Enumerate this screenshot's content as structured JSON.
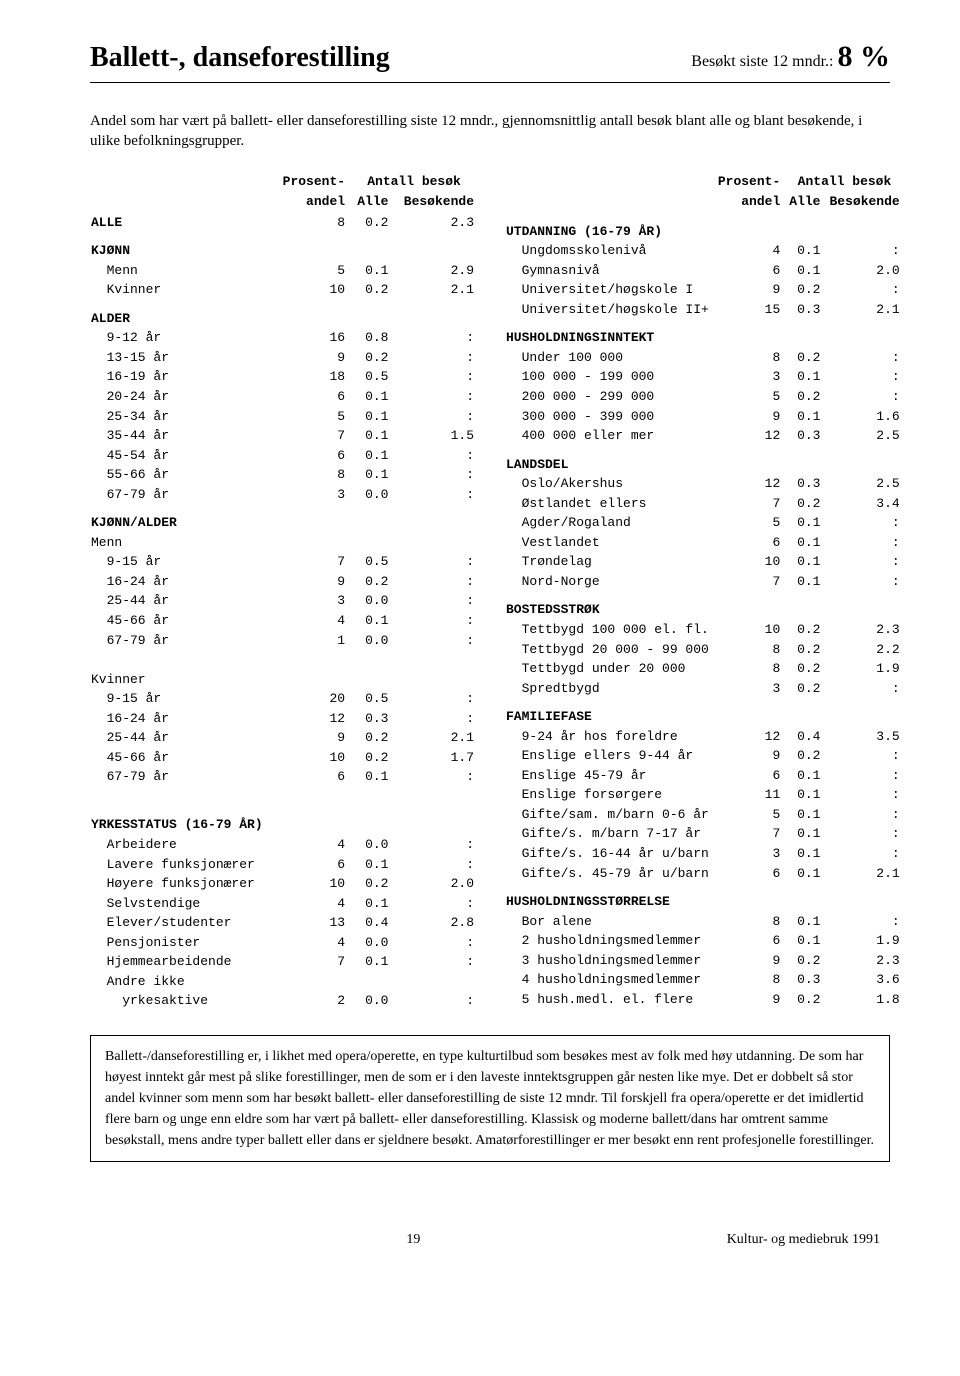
{
  "header": {
    "title": "Ballett-, danseforestilling",
    "stat_label": "Besøkt siste 12 mndr.:",
    "stat_value": "8 %"
  },
  "intro": "Andel som har vært på ballett- eller danseforestilling siste 12 mndr., gjennomsnittlig antall besøk blant alle og blant besøkende, i ulike befolkningsgrupper.",
  "table_header": {
    "h1": "Prosent-",
    "h1b": "andel",
    "h2": "Antall besøk",
    "h2a": "Alle",
    "h2b": "Besøkende"
  },
  "left": [
    {
      "type": "row",
      "bold": true,
      "label": "ALLE",
      "c1": "8",
      "c2": "0.2",
      "c3": "2.3"
    },
    {
      "type": "head",
      "label": "KJØNN"
    },
    {
      "type": "row",
      "indent": true,
      "label": "Menn",
      "c1": "5",
      "c2": "0.1",
      "c3": "2.9"
    },
    {
      "type": "row",
      "indent": true,
      "label": "Kvinner",
      "c1": "10",
      "c2": "0.2",
      "c3": "2.1"
    },
    {
      "type": "head",
      "label": "ALDER"
    },
    {
      "type": "row",
      "indent": true,
      "label": "9-12 år",
      "c1": "16",
      "c2": "0.8",
      "c3": ":"
    },
    {
      "type": "row",
      "indent": true,
      "label": "13-15 år",
      "c1": "9",
      "c2": "0.2",
      "c3": ":"
    },
    {
      "type": "row",
      "indent": true,
      "label": "16-19 år",
      "c1": "18",
      "c2": "0.5",
      "c3": ":"
    },
    {
      "type": "row",
      "indent": true,
      "label": "20-24 år",
      "c1": "6",
      "c2": "0.1",
      "c3": ":"
    },
    {
      "type": "row",
      "indent": true,
      "label": "25-34 år",
      "c1": "5",
      "c2": "0.1",
      "c3": ":"
    },
    {
      "type": "row",
      "indent": true,
      "label": "35-44 år",
      "c1": "7",
      "c2": "0.1",
      "c3": "1.5"
    },
    {
      "type": "row",
      "indent": true,
      "label": "45-54 år",
      "c1": "6",
      "c2": "0.1",
      "c3": ":"
    },
    {
      "type": "row",
      "indent": true,
      "label": "55-66 år",
      "c1": "8",
      "c2": "0.1",
      "c3": ":"
    },
    {
      "type": "row",
      "indent": true,
      "label": "67-79 år",
      "c1": "3",
      "c2": "0.0",
      "c3": ":"
    },
    {
      "type": "head",
      "label": "KJØNN/ALDER"
    },
    {
      "type": "row",
      "label": "Menn",
      "c1": "",
      "c2": "",
      "c3": ""
    },
    {
      "type": "row",
      "indent": true,
      "label": "9-15 år",
      "c1": "7",
      "c2": "0.5",
      "c3": ":"
    },
    {
      "type": "row",
      "indent": true,
      "label": "16-24 år",
      "c1": "9",
      "c2": "0.2",
      "c3": ":"
    },
    {
      "type": "row",
      "indent": true,
      "label": "25-44 år",
      "c1": "3",
      "c2": "0.0",
      "c3": ":"
    },
    {
      "type": "row",
      "indent": true,
      "label": "45-66 år",
      "c1": "4",
      "c2": "0.1",
      "c3": ":"
    },
    {
      "type": "row",
      "indent": true,
      "label": "67-79 år",
      "c1": "1",
      "c2": "0.0",
      "c3": ":"
    },
    {
      "type": "blank"
    },
    {
      "type": "row",
      "label": "Kvinner",
      "c1": "",
      "c2": "",
      "c3": ""
    },
    {
      "type": "row",
      "indent": true,
      "label": "9-15 år",
      "c1": "20",
      "c2": "0.5",
      "c3": ":"
    },
    {
      "type": "row",
      "indent": true,
      "label": "16-24 år",
      "c1": "12",
      "c2": "0.3",
      "c3": ":"
    },
    {
      "type": "row",
      "indent": true,
      "label": "25-44 år",
      "c1": "9",
      "c2": "0.2",
      "c3": "2.1"
    },
    {
      "type": "row",
      "indent": true,
      "label": "45-66 år",
      "c1": "10",
      "c2": "0.2",
      "c3": "1.7"
    },
    {
      "type": "row",
      "indent": true,
      "label": "67-79 år",
      "c1": "6",
      "c2": "0.1",
      "c3": ":"
    },
    {
      "type": "blank"
    },
    {
      "type": "head",
      "label": "YRKESSTATUS (16-79 ÅR)"
    },
    {
      "type": "row",
      "indent": true,
      "label": "Arbeidere",
      "c1": "4",
      "c2": "0.0",
      "c3": ":"
    },
    {
      "type": "row",
      "indent": true,
      "label": "Lavere funksjonærer",
      "c1": "6",
      "c2": "0.1",
      "c3": ":"
    },
    {
      "type": "row",
      "indent": true,
      "label": "Høyere funksjonærer",
      "c1": "10",
      "c2": "0.2",
      "c3": "2.0"
    },
    {
      "type": "row",
      "indent": true,
      "label": "Selvstendige",
      "c1": "4",
      "c2": "0.1",
      "c3": ":"
    },
    {
      "type": "row",
      "indent": true,
      "label": "Elever/studenter",
      "c1": "13",
      "c2": "0.4",
      "c3": "2.8"
    },
    {
      "type": "row",
      "indent": true,
      "label": "Pensjonister",
      "c1": "4",
      "c2": "0.0",
      "c3": ":"
    },
    {
      "type": "row",
      "indent": true,
      "label": "Hjemmearbeidende",
      "c1": "7",
      "c2": "0.1",
      "c3": ":"
    },
    {
      "type": "row",
      "indent": true,
      "label": "Andre ikke",
      "c1": "",
      "c2": "",
      "c3": ""
    },
    {
      "type": "row",
      "indent": true,
      "label": "  yrkesaktive",
      "c1": "2",
      "c2": "0.0",
      "c3": ":"
    }
  ],
  "right": [
    {
      "type": "head",
      "label": "UTDANNING (16-79 ÅR)"
    },
    {
      "type": "row",
      "indent": true,
      "label": "Ungdomsskolenivå",
      "c1": "4",
      "c2": "0.1",
      "c3": ":"
    },
    {
      "type": "row",
      "indent": true,
      "label": "Gymnasnivå",
      "c1": "6",
      "c2": "0.1",
      "c3": "2.0"
    },
    {
      "type": "row",
      "indent": true,
      "label": "Universitet/høgskole I",
      "c1": "9",
      "c2": "0.2",
      "c3": ":"
    },
    {
      "type": "row",
      "indent": true,
      "label": "Universitet/høgskole II+",
      "c1": "15",
      "c2": "0.3",
      "c3": "2.1"
    },
    {
      "type": "head",
      "label": "HUSHOLDNINGSINNTEKT"
    },
    {
      "type": "row",
      "indent": true,
      "label": "Under 100 000",
      "c1": "8",
      "c2": "0.2",
      "c3": ":"
    },
    {
      "type": "row",
      "indent": true,
      "label": "100 000 - 199 000",
      "c1": "3",
      "c2": "0.1",
      "c3": ":"
    },
    {
      "type": "row",
      "indent": true,
      "label": "200 000 - 299 000",
      "c1": "5",
      "c2": "0.2",
      "c3": ":"
    },
    {
      "type": "row",
      "indent": true,
      "label": "300 000 - 399 000",
      "c1": "9",
      "c2": "0.1",
      "c3": "1.6"
    },
    {
      "type": "row",
      "indent": true,
      "label": "400 000 eller mer",
      "c1": "12",
      "c2": "0.3",
      "c3": "2.5"
    },
    {
      "type": "head",
      "label": "LANDSDEL"
    },
    {
      "type": "row",
      "indent": true,
      "label": "Oslo/Akershus",
      "c1": "12",
      "c2": "0.3",
      "c3": "2.5"
    },
    {
      "type": "row",
      "indent": true,
      "label": "Østlandet ellers",
      "c1": "7",
      "c2": "0.2",
      "c3": "3.4"
    },
    {
      "type": "row",
      "indent": true,
      "label": "Agder/Rogaland",
      "c1": "5",
      "c2": "0.1",
      "c3": ":"
    },
    {
      "type": "row",
      "indent": true,
      "label": "Vestlandet",
      "c1": "6",
      "c2": "0.1",
      "c3": ":"
    },
    {
      "type": "row",
      "indent": true,
      "label": "Trøndelag",
      "c1": "10",
      "c2": "0.1",
      "c3": ":"
    },
    {
      "type": "row",
      "indent": true,
      "label": "Nord-Norge",
      "c1": "7",
      "c2": "0.1",
      "c3": ":"
    },
    {
      "type": "head",
      "label": "BOSTEDSSTRØK"
    },
    {
      "type": "row",
      "indent": true,
      "label": "Tettbygd 100 000 el. fl.",
      "c1": "10",
      "c2": "0.2",
      "c3": "2.3"
    },
    {
      "type": "row",
      "indent": true,
      "label": "Tettbygd 20 000 - 99 000",
      "c1": "8",
      "c2": "0.2",
      "c3": "2.2"
    },
    {
      "type": "row",
      "indent": true,
      "label": "Tettbygd under 20 000",
      "c1": "8",
      "c2": "0.2",
      "c3": "1.9"
    },
    {
      "type": "row",
      "indent": true,
      "label": "Spredtbygd",
      "c1": "3",
      "c2": "0.2",
      "c3": ":"
    },
    {
      "type": "head",
      "label": "FAMILIEFASE"
    },
    {
      "type": "row",
      "indent": true,
      "label": "9-24 år hos foreldre",
      "c1": "12",
      "c2": "0.4",
      "c3": "3.5"
    },
    {
      "type": "row",
      "indent": true,
      "label": "Enslige ellers 9-44 år",
      "c1": "9",
      "c2": "0.2",
      "c3": ":"
    },
    {
      "type": "row",
      "indent": true,
      "label": "Enslige 45-79 år",
      "c1": "6",
      "c2": "0.1",
      "c3": ":"
    },
    {
      "type": "row",
      "indent": true,
      "label": "Enslige forsørgere",
      "c1": "11",
      "c2": "0.1",
      "c3": ":"
    },
    {
      "type": "row",
      "indent": true,
      "label": "Gifte/sam. m/barn 0-6 år",
      "c1": "5",
      "c2": "0.1",
      "c3": ":"
    },
    {
      "type": "row",
      "indent": true,
      "label": "Gifte/s. m/barn 7-17 år",
      "c1": "7",
      "c2": "0.1",
      "c3": ":"
    },
    {
      "type": "row",
      "indent": true,
      "label": "Gifte/s. 16-44 år u/barn",
      "c1": "3",
      "c2": "0.1",
      "c3": ":"
    },
    {
      "type": "row",
      "indent": true,
      "label": "Gifte/s. 45-79 år u/barn",
      "c1": "6",
      "c2": "0.1",
      "c3": "2.1"
    },
    {
      "type": "head",
      "label": "HUSHOLDNINGSSTØRRELSE"
    },
    {
      "type": "row",
      "indent": true,
      "label": "Bor alene",
      "c1": "8",
      "c2": "0.1",
      "c3": ":"
    },
    {
      "type": "row",
      "indent": true,
      "label": "2 husholdningsmedlemmer",
      "c1": "6",
      "c2": "0.1",
      "c3": "1.9"
    },
    {
      "type": "row",
      "indent": true,
      "label": "3 husholdningsmedlemmer",
      "c1": "9",
      "c2": "0.2",
      "c3": "2.3"
    },
    {
      "type": "row",
      "indent": true,
      "label": "4 husholdningsmedlemmer",
      "c1": "8",
      "c2": "0.3",
      "c3": "3.6"
    },
    {
      "type": "row",
      "indent": true,
      "label": "5 hush.medl. el. flere",
      "c1": "9",
      "c2": "0.2",
      "c3": "1.8"
    }
  ],
  "summary": "Ballett-/danseforestilling er, i likhet med opera/operette, en type kulturtilbud som besøkes mest av folk med høy utdanning. De som har høyest inntekt går mest på slike forestillinger, men de som er i den laveste inntektsgruppen går nesten like mye. Det er dobbelt så stor andel kvinner som menn som har besøkt ballett- eller danseforestilling de siste 12 mndr. Til forskjell fra opera/operette er det imidlertid flere barn og unge enn eldre som har vært på ballett- eller danseforestilling. Klassisk og moderne ballett/dans har omtrent samme besøkstall, mens andre typer ballett eller dans er sjeldnere besøkt. Amatørforestillinger er mer besøkt enn rent profesjonelle forestillinger.",
  "footer": {
    "page": "19",
    "source": "Kultur- og mediebruk 1991"
  }
}
